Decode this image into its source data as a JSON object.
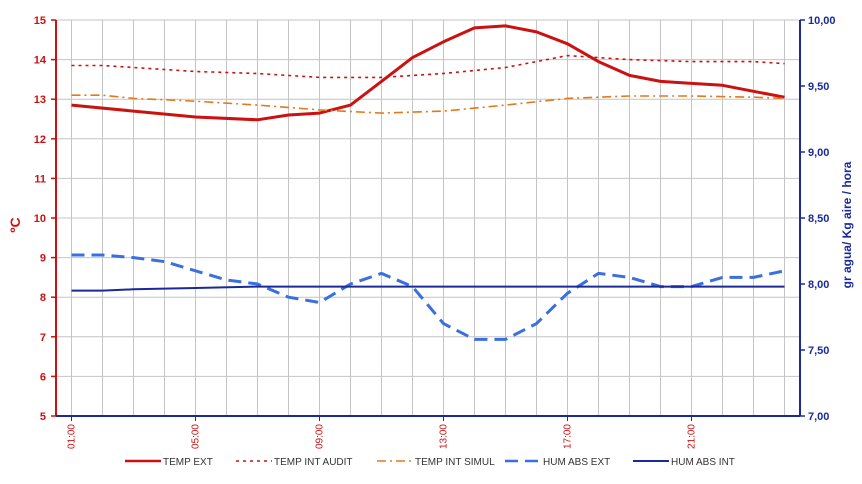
{
  "chart_data": {
    "type": "line",
    "ylabel": "ºC",
    "y2label": "gr agua/ Kg aire / hora",
    "ylim": [
      5,
      15
    ],
    "y2lim": [
      7.0,
      10.0
    ],
    "yticks": [
      "5",
      "6",
      "7",
      "8",
      "9",
      "10",
      "11",
      "12",
      "13",
      "14",
      "15"
    ],
    "y2ticks": [
      "7,00",
      "7,50",
      "8,00",
      "8,50",
      "9,00",
      "9,50",
      "10,00"
    ],
    "xlim": [
      1,
      24
    ],
    "xtick_labels": [
      "01:00",
      "05:00",
      "09:00",
      "13:00",
      "17:00",
      "21:00"
    ],
    "xtick_hours": [
      1,
      5,
      9,
      13,
      17,
      21
    ],
    "grid": true,
    "legend_position": "bottom",
    "series": [
      {
        "name": "TEMP EXT",
        "axis": "left",
        "color": "#cc1111",
        "style": "solid-thick",
        "x": [
          1,
          3,
          5,
          7,
          8,
          9,
          10,
          11,
          12,
          13,
          14,
          15,
          16,
          17,
          18,
          19,
          20,
          21,
          22,
          23,
          24
        ],
        "y": [
          12.85,
          12.7,
          12.55,
          12.48,
          12.6,
          12.65,
          12.85,
          13.45,
          14.05,
          14.45,
          14.8,
          14.85,
          14.7,
          14.4,
          13.95,
          13.6,
          13.45,
          13.4,
          13.35,
          13.2,
          13.05
        ]
      },
      {
        "name": "TEMP INT AUDIT",
        "axis": "left",
        "color": "#cc1111",
        "style": "dotted",
        "x": [
          1,
          2,
          3,
          5,
          7,
          9,
          11,
          13,
          15,
          17,
          18,
          19,
          21,
          23,
          24
        ],
        "y": [
          13.85,
          13.85,
          13.8,
          13.7,
          13.65,
          13.55,
          13.55,
          13.65,
          13.8,
          14.1,
          14.05,
          14.0,
          13.95,
          13.95,
          13.9
        ]
      },
      {
        "name": "TEMP INT SIMUL",
        "axis": "left",
        "color": "#e07a1a",
        "style": "dashdot",
        "x": [
          1,
          2,
          3,
          5,
          7,
          9,
          11,
          13,
          15,
          17,
          19,
          21,
          23,
          24
        ],
        "y": [
          13.1,
          13.1,
          13.02,
          12.95,
          12.85,
          12.73,
          12.65,
          12.7,
          12.85,
          13.02,
          13.08,
          13.08,
          13.05,
          13.02
        ]
      },
      {
        "name": "HUM ABS EXT",
        "axis": "right",
        "color": "#3a6fe0",
        "style": "dashed-thick",
        "x": [
          1,
          2,
          3,
          4,
          5,
          6,
          7,
          8,
          9,
          10,
          11,
          12,
          13,
          14,
          15,
          16,
          17,
          18,
          19,
          20,
          21,
          22,
          23,
          24
        ],
        "y": [
          8.22,
          8.22,
          8.2,
          8.17,
          8.1,
          8.03,
          8.0,
          7.9,
          7.86,
          8.0,
          8.08,
          7.98,
          7.7,
          7.58,
          7.58,
          7.7,
          7.93,
          8.08,
          8.05,
          7.98,
          7.98,
          8.05,
          8.05,
          8.1
        ]
      },
      {
        "name": "HUM ABS INT",
        "axis": "right",
        "color": "#1a2a99",
        "style": "solid",
        "x": [
          1,
          2,
          3,
          5,
          7,
          9,
          11,
          13,
          15,
          17,
          19,
          21,
          23,
          24
        ],
        "y": [
          7.95,
          7.95,
          7.96,
          7.97,
          7.98,
          7.98,
          7.98,
          7.98,
          7.98,
          7.98,
          7.98,
          7.98,
          7.98,
          7.98
        ]
      }
    ]
  }
}
